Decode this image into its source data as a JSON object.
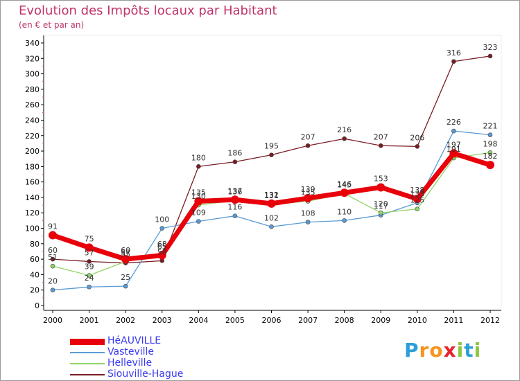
{
  "header": {
    "title": "Evolution des Impôts locaux par Habitant",
    "subtitle": "(en € et par an)"
  },
  "logo": {
    "letters": [
      "P",
      "r",
      "o",
      "x",
      "i",
      "t",
      "i"
    ]
  },
  "colors": {
    "title": "#c0326a",
    "grid_marks": "#e05080",
    "legend_text": "#3a3af0",
    "logo_letters": [
      "#2f9ed8",
      "#f7941d",
      "#f7941d",
      "#e8232c",
      "#8cc63f",
      "#2f9ed8",
      "#8cc63f"
    ]
  },
  "chart_data": {
    "type": "line",
    "title": "Evolution des Impôts locaux par Habitant",
    "subtitle": "(en € et par an)",
    "xlabel": "",
    "ylabel": "",
    "x": [
      "2000",
      "2001",
      "2002",
      "2003",
      "2004",
      "2005",
      "2006",
      "2007",
      "2008",
      "2009",
      "2010",
      "2011",
      "2012"
    ],
    "ylim": [
      0,
      340
    ],
    "yticks": [
      0,
      20,
      40,
      60,
      80,
      100,
      120,
      140,
      160,
      180,
      200,
      220,
      240,
      260,
      280,
      300,
      320,
      340
    ],
    "grid": false,
    "legend_position": "bottom-left",
    "series": [
      {
        "name": "HéAUVILLE",
        "color": "#e8000b",
        "width": "thick",
        "values": [
          91,
          75,
          60,
          65,
          135,
          137,
          132,
          139,
          146,
          153,
          138,
          197,
          182
        ],
        "labels": [
          "91",
          "75",
          "60",
          "65",
          "135",
          "137",
          "132",
          "139",
          "146",
          "153",
          "138",
          "197",
          "182"
        ]
      },
      {
        "name": "Vasteville",
        "color": "#5b9bd5",
        "width": "thin",
        "values": [
          20,
          24,
          25,
          100,
          109,
          116,
          102,
          108,
          110,
          117,
          133,
          226,
          221
        ],
        "labels": [
          "20",
          "24",
          "25",
          "100",
          "109",
          "116",
          "102",
          "108",
          "110",
          "117",
          "133",
          "226",
          "221"
        ]
      },
      {
        "name": "Helleville",
        "color": "#8fd466",
        "width": "thin",
        "values": [
          51,
          39,
          57,
          68,
          130,
          136,
          131,
          135,
          145,
          120,
          125,
          191,
          198
        ],
        "labels": [
          "51",
          "39",
          "57",
          "68",
          "130",
          "136",
          "131",
          "135",
          "145",
          "120",
          "125",
          "191",
          "198"
        ]
      },
      {
        "name": "Siouville-Hague",
        "color": "#7a1c24",
        "width": "thin",
        "values": [
          60,
          57,
          55,
          58,
          180,
          186,
          195,
          207,
          216,
          207,
          206,
          316,
          323
        ],
        "labels": [
          "60",
          "57",
          "55",
          "58",
          "180",
          "186",
          "195",
          "207",
          "216",
          "207",
          "206",
          "316",
          "323"
        ]
      }
    ]
  }
}
